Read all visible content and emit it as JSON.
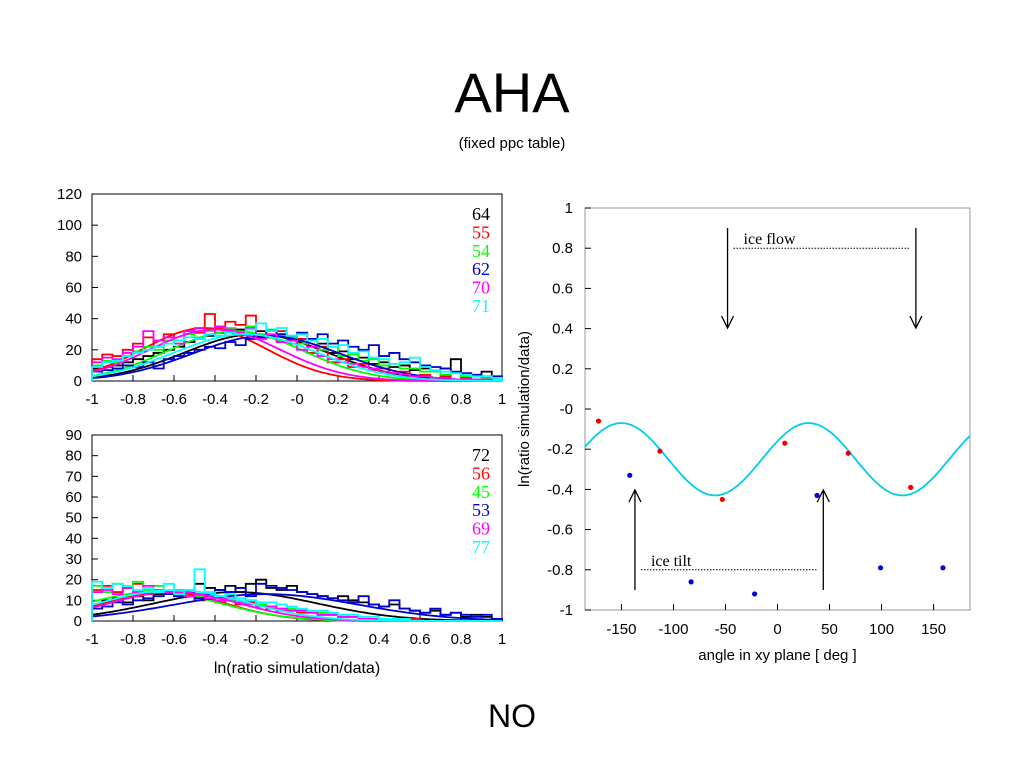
{
  "slide": {
    "title": "AHA",
    "subtitle": "(fixed ppc table)",
    "footer": "NO"
  },
  "chart_data": [
    {
      "type": "histogram",
      "panel": "top-left",
      "xlim": [
        -1,
        1
      ],
      "ylim": [
        0,
        120
      ],
      "xticks": [
        "-1",
        "-0.8",
        "-0.6",
        "-0.4",
        "-0.2",
        "-0",
        "0.2",
        "0.4",
        "0.6",
        "0.8",
        "1"
      ],
      "yticks": [
        "0",
        "20",
        "40",
        "60",
        "80",
        "100",
        "120"
      ],
      "legend_position": "top-right",
      "fits": "gaussian",
      "series": [
        {
          "name": "64",
          "color": "#000000",
          "mean": -0.2,
          "sigma": 0.35,
          "amp": 30,
          "values": [
            8,
            9,
            10,
            12,
            14,
            16,
            18,
            20,
            22,
            25,
            27,
            29,
            31,
            29,
            33,
            30,
            32,
            28,
            30,
            26,
            27,
            22,
            24,
            18,
            19,
            14,
            15,
            11,
            12,
            9,
            10,
            7,
            8,
            6,
            8,
            14,
            4,
            3,
            6,
            2
          ]
        },
        {
          "name": "55",
          "color": "#ff0000",
          "mean": -0.45,
          "sigma": 0.3,
          "amp": 34,
          "values": [
            14,
            17,
            16,
            20,
            24,
            28,
            22,
            30,
            26,
            32,
            31,
            43,
            34,
            38,
            36,
            42,
            30,
            28,
            32,
            24,
            27,
            18,
            22,
            12,
            14,
            9,
            11,
            7,
            8,
            5,
            6,
            3,
            4,
            2,
            3,
            1,
            2,
            1,
            1,
            0
          ]
        },
        {
          "name": "54",
          "color": "#00ff00",
          "mean": -0.3,
          "sigma": 0.33,
          "amp": 32,
          "values": [
            10,
            13,
            12,
            16,
            19,
            22,
            20,
            26,
            24,
            30,
            28,
            32,
            29,
            34,
            31,
            35,
            30,
            33,
            29,
            28,
            24,
            26,
            20,
            22,
            16,
            17,
            13,
            14,
            10,
            11,
            8,
            8,
            6,
            6,
            4,
            5,
            3,
            3,
            2,
            2
          ]
        },
        {
          "name": "62",
          "color": "#0000cc",
          "mean": -0.15,
          "sigma": 0.36,
          "amp": 29,
          "values": [
            6,
            7,
            8,
            10,
            9,
            12,
            8,
            14,
            16,
            18,
            20,
            22,
            21,
            25,
            23,
            27,
            28,
            32,
            30,
            29,
            31,
            27,
            30,
            24,
            26,
            22,
            20,
            23,
            16,
            18,
            14,
            12,
            10,
            9,
            8,
            6,
            5,
            4,
            3,
            3
          ]
        },
        {
          "name": "70",
          "color": "#ff00ff",
          "mean": -0.4,
          "sigma": 0.32,
          "amp": 33,
          "values": [
            12,
            15,
            14,
            18,
            22,
            32,
            26,
            28,
            24,
            32,
            34,
            30,
            35,
            33,
            31,
            34,
            27,
            30,
            25,
            26,
            20,
            22,
            16,
            14,
            12,
            11,
            9,
            8,
            6,
            5,
            4,
            3,
            3,
            2,
            2,
            1,
            1,
            1,
            1,
            0
          ]
        },
        {
          "name": "71",
          "color": "#00ffff",
          "mean": -0.25,
          "sigma": 0.35,
          "amp": 30,
          "values": [
            9,
            12,
            13,
            16,
            18,
            20,
            22,
            24,
            26,
            28,
            27,
            30,
            29,
            31,
            30,
            33,
            37,
            32,
            34,
            29,
            30,
            26,
            27,
            22,
            23,
            18,
            19,
            15,
            14,
            11,
            12,
            15,
            9,
            7,
            6,
            5,
            4,
            3,
            3,
            2
          ]
        }
      ]
    },
    {
      "type": "histogram",
      "panel": "bottom-left",
      "xlim": [
        -1,
        1
      ],
      "ylim": [
        0,
        90
      ],
      "xticks": [
        "-1",
        "-0.8",
        "-0.6",
        "-0.4",
        "-0.2",
        "-0",
        "0.2",
        "0.4",
        "0.6",
        "0.8",
        "1"
      ],
      "yticks": [
        "0",
        "10",
        "20",
        "30",
        "40",
        "50",
        "60",
        "70",
        "80",
        "90"
      ],
      "xlabel": "ln(ratio simulation/data)",
      "legend_position": "top-right",
      "fits": "gaussian",
      "series": [
        {
          "name": "72",
          "color": "#000000",
          "mean": -0.3,
          "sigma": 0.4,
          "amp": 14,
          "values": [
            8,
            10,
            11,
            9,
            12,
            10,
            13,
            14,
            15,
            12,
            18,
            16,
            15,
            17,
            14,
            18,
            20,
            16,
            15,
            17,
            14,
            13,
            12,
            11,
            12,
            10,
            9,
            8,
            7,
            8,
            6,
            5,
            4,
            5,
            3,
            4,
            2,
            3,
            2,
            1
          ]
        },
        {
          "name": "56",
          "color": "#ff0000",
          "mean": -0.65,
          "sigma": 0.3,
          "amp": 14,
          "values": [
            15,
            17,
            14,
            16,
            18,
            13,
            15,
            14,
            12,
            13,
            10,
            12,
            9,
            10,
            8,
            9,
            7,
            6,
            5,
            5,
            4,
            4,
            3,
            3,
            2,
            2,
            1,
            1,
            1,
            1,
            0,
            1,
            0,
            0,
            0,
            0,
            0,
            0,
            0,
            0
          ]
        },
        {
          "name": "45",
          "color": "#00ff00",
          "mean": -0.7,
          "sigma": 0.33,
          "amp": 14,
          "values": [
            17,
            14,
            18,
            16,
            19,
            15,
            17,
            14,
            13,
            15,
            12,
            13,
            11,
            10,
            9,
            10,
            8,
            7,
            6,
            6,
            5,
            4,
            4,
            3,
            3,
            2,
            2,
            1,
            1,
            1,
            1,
            0,
            0,
            0,
            0,
            0,
            0,
            0,
            0,
            0
          ]
        },
        {
          "name": "53",
          "color": "#0000cc",
          "mean": -0.15,
          "sigma": 0.45,
          "amp": 13,
          "values": [
            6,
            7,
            9,
            8,
            10,
            11,
            12,
            13,
            12,
            14,
            11,
            13,
            15,
            14,
            16,
            12,
            18,
            17,
            16,
            15,
            14,
            13,
            12,
            11,
            10,
            9,
            12,
            8,
            7,
            10,
            6,
            5,
            4,
            6,
            3,
            4,
            3,
            2,
            3,
            1
          ]
        },
        {
          "name": "69",
          "color": "#ff00ff",
          "mean": -0.6,
          "sigma": 0.32,
          "amp": 14,
          "values": [
            14,
            15,
            13,
            16,
            14,
            17,
            15,
            14,
            13,
            12,
            13,
            11,
            10,
            11,
            9,
            8,
            7,
            7,
            6,
            5,
            5,
            4,
            3,
            3,
            2,
            2,
            1,
            1,
            1,
            1,
            0,
            0,
            0,
            0,
            0,
            0,
            0,
            0,
            0,
            0
          ]
        },
        {
          "name": "77",
          "color": "#00ffff",
          "mean": -0.6,
          "sigma": 0.35,
          "amp": 15,
          "values": [
            19,
            16,
            18,
            17,
            15,
            16,
            14,
            18,
            13,
            15,
            25,
            14,
            12,
            13,
            11,
            10,
            9,
            9,
            8,
            7,
            6,
            5,
            5,
            4,
            3,
            3,
            2,
            2,
            1,
            1,
            1,
            0,
            0,
            0,
            0,
            0,
            0,
            0,
            0,
            0
          ]
        }
      ]
    },
    {
      "type": "scatter",
      "panel": "right",
      "xlim": [
        -185,
        185
      ],
      "ylim": [
        -1,
        1
      ],
      "xticks": [
        -150,
        -100,
        -50,
        0,
        50,
        100,
        150
      ],
      "yticks": [
        "1",
        "0.8",
        "0.6",
        "0.4",
        "0.2",
        "-0",
        "-0.2",
        "-0.4",
        "-0.6",
        "-0.8",
        "-1"
      ],
      "xlabel": "angle in xy plane [ deg ]",
      "ylabel": "ln(ratio simulation/data)",
      "curve": {
        "color": "#00ccee",
        "offset": -0.25,
        "amplitude": 0.18,
        "period_deg": 180,
        "peak_deg": 30
      },
      "red_points": [
        [
          -172,
          -0.06
        ],
        [
          -113,
          -0.21
        ],
        [
          -53,
          -0.45
        ],
        [
          7,
          -0.17
        ],
        [
          68,
          -0.22
        ],
        [
          128,
          -0.39
        ]
      ],
      "blue_points": [
        [
          -142,
          -0.33
        ],
        [
          -83,
          -0.86
        ],
        [
          -22,
          -0.92
        ],
        [
          38,
          -0.43
        ],
        [
          99,
          -0.79
        ],
        [
          159,
          -0.79
        ]
      ],
      "annotations": [
        {
          "text": "ice flow",
          "arrows_at_deg": [
            -48,
            133
          ],
          "line_y": 0.8
        },
        {
          "text": "ice tilt",
          "arrows_at_deg": [
            -137,
            44
          ],
          "line_y": -0.8
        }
      ]
    }
  ]
}
